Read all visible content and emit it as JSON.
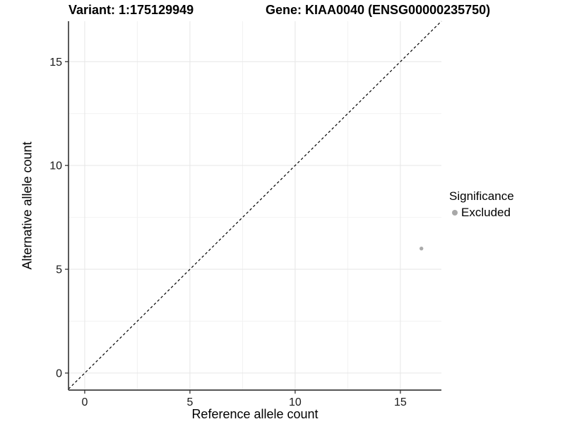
{
  "header": {
    "variant_title": "Variant: 1:175129949",
    "gene_title": "Gene: KIAA0040 (ENSG00000235750)"
  },
  "chart_data": {
    "type": "scatter",
    "xlabel": "Reference allele count",
    "ylabel": "Alternative allele count",
    "xlim": [
      -0.77,
      16.95
    ],
    "ylim": [
      -0.82,
      16.95
    ],
    "x_major_ticks": [
      0,
      5,
      10,
      15
    ],
    "x_tick_labels": [
      "0",
      "5",
      "10",
      "15"
    ],
    "y_major_ticks": [
      0,
      5,
      10,
      15
    ],
    "y_tick_labels": [
      "0",
      "5",
      "10",
      "15"
    ],
    "x_minor_ticks": [
      2.5,
      7.5,
      12.5
    ],
    "y_minor_ticks": [
      2.5,
      7.5,
      12.5
    ],
    "grid": true,
    "identity_line": {
      "slope": 1,
      "intercept": 0,
      "style": "dashed"
    },
    "series": [
      {
        "name": "Excluded",
        "color": "#ababab",
        "points": [
          {
            "x": 16,
            "y": 6
          }
        ]
      }
    ],
    "legend": {
      "title": "Significance",
      "position": "right",
      "items": [
        {
          "label": "Excluded",
          "color": "#a8a8a8"
        }
      ]
    }
  },
  "colors": {
    "background": "#ffffff",
    "grid_major": "#e6e6e6",
    "grid_minor": "#f2f2f2",
    "axis_line": "#3d3d3d",
    "tick_mark": "#333333",
    "tick_label": "#1a1a1a",
    "identity_line": "#000000"
  }
}
